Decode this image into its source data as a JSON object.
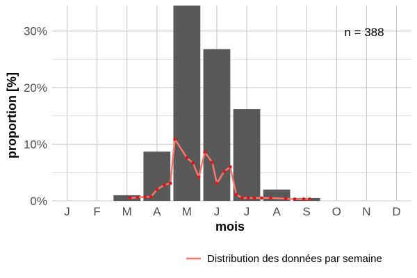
{
  "chart_data": {
    "type": "bar",
    "categories": [
      "J",
      "F",
      "M",
      "A",
      "M",
      "J",
      "J",
      "A",
      "S",
      "O",
      "N",
      "D"
    ],
    "values": [
      0,
      0,
      1.0,
      8.7,
      34.5,
      26.8,
      16.2,
      2.0,
      0.5,
      0,
      0,
      0
    ],
    "y_tick_labels": [
      "0%",
      "10%",
      "20%",
      "30%"
    ],
    "y_ticks": [
      0,
      10,
      20,
      30
    ],
    "ylim": [
      0,
      34.5
    ],
    "xlim": [
      0.5,
      12.5
    ],
    "xlabel": "mois",
    "ylabel": "proportion [%]",
    "annotation": "n = 388",
    "grid": true,
    "legend_position": "bottom-right",
    "series": [
      {
        "name": "Distribution des données par semaine",
        "type": "line",
        "x": [
          3.1,
          3.35,
          3.6,
          3.8,
          4.0,
          4.25,
          4.45,
          4.6,
          5.0,
          5.2,
          5.4,
          5.6,
          5.85,
          6.0,
          6.25,
          6.45,
          6.65,
          6.85,
          7.05,
          7.25,
          7.5,
          7.8,
          8.3,
          8.6,
          8.9,
          9.1
        ],
        "y": [
          0.5,
          0.6,
          0.7,
          0.7,
          2.0,
          2.8,
          3.1,
          10.9,
          7.6,
          6.7,
          4.2,
          8.6,
          6.8,
          3.1,
          5.2,
          6.0,
          1.1,
          0.5,
          0.5,
          0.5,
          0.5,
          0.5,
          0.4,
          0.3,
          0.3,
          0.3
        ]
      }
    ],
    "colors": {
      "bar": "#595959",
      "line": "#f8766d",
      "point": "#d7191c",
      "grid": "#c8c8c8"
    }
  }
}
